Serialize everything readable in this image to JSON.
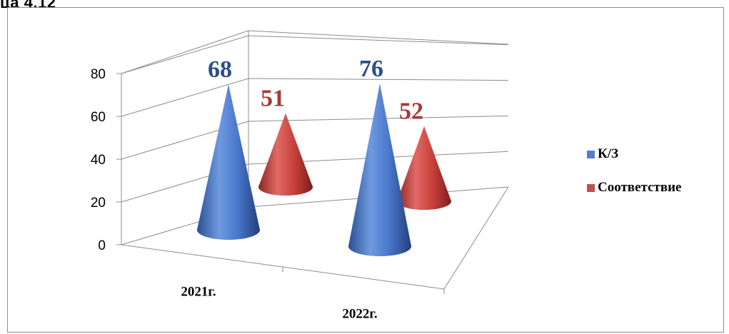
{
  "caption": "ца 4.12",
  "chart_data": {
    "type": "bar",
    "subtype": "3d-cone",
    "categories": [
      "2021г.",
      "2022г."
    ],
    "series": [
      {
        "name": "К/З",
        "values": [
          68,
          76
        ],
        "color": "#4472c4"
      },
      {
        "name": "Соответствие",
        "values": [
          51,
          52
        ],
        "color": "#c0504d"
      }
    ],
    "data_labels": [
      [
        "68",
        "76"
      ],
      [
        "51",
        "52"
      ]
    ],
    "y_ticks": [
      "0",
      "20",
      "40",
      "60",
      "80"
    ],
    "ylim": [
      0,
      80
    ],
    "grid": true,
    "legend_position": "right"
  }
}
